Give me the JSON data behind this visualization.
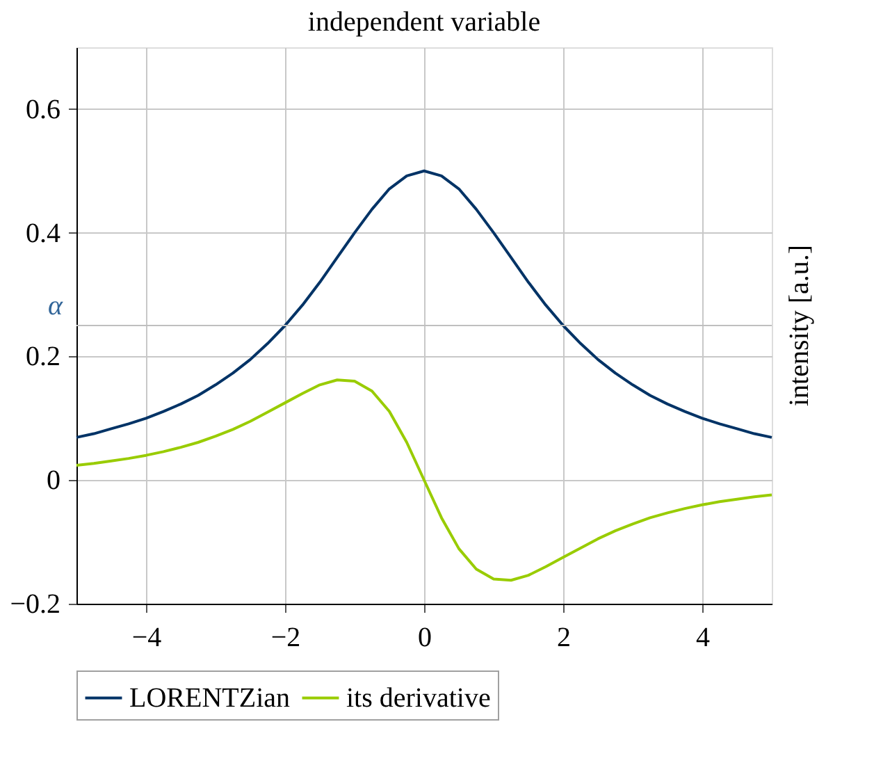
{
  "chart_data": {
    "type": "line",
    "xlabel": "independent variable",
    "ylabel": "intensity [a.u.]",
    "x": [
      -5,
      -4.75,
      -4.5,
      -4.25,
      -4,
      -3.75,
      -3.5,
      -3.25,
      -3,
      -2.75,
      -2.5,
      -2.25,
      -2,
      -1.75,
      -1.5,
      -1.25,
      -1,
      -0.75,
      -0.5,
      -0.25,
      0,
      0.25,
      0.5,
      0.75,
      1,
      1.25,
      1.5,
      1.75,
      2,
      2.25,
      2.5,
      2.75,
      3,
      3.25,
      3.5,
      3.75,
      4,
      4.25,
      4.5,
      4.75,
      5
    ],
    "series": [
      {
        "name": "LORENTZian",
        "color": "#003366",
        "values": [
          0.069,
          0.075,
          0.083,
          0.091,
          0.1,
          0.111,
          0.123,
          0.137,
          0.154,
          0.173,
          0.195,
          0.221,
          0.25,
          0.283,
          0.32,
          0.36,
          0.4,
          0.438,
          0.471,
          0.492,
          0.5,
          0.492,
          0.471,
          0.438,
          0.4,
          0.36,
          0.32,
          0.283,
          0.25,
          0.221,
          0.195,
          0.173,
          0.154,
          0.137,
          0.123,
          0.111,
          0.1,
          0.091,
          0.083,
          0.075,
          0.069
        ]
      },
      {
        "name": "its derivative",
        "color": "#99cc00",
        "values": [
          0.024,
          0.027,
          0.031,
          0.035,
          0.04,
          0.046,
          0.053,
          0.061,
          0.071,
          0.082,
          0.095,
          0.11,
          0.125,
          0.14,
          0.154,
          0.162,
          0.16,
          0.144,
          0.111,
          0.061,
          0,
          -0.061,
          -0.111,
          -0.144,
          -0.16,
          -0.162,
          -0.154,
          -0.14,
          -0.125,
          -0.11,
          -0.095,
          -0.082,
          -0.071,
          -0.061,
          -0.053,
          -0.046,
          -0.04,
          -0.035,
          -0.031,
          -0.027,
          -0.024
        ]
      }
    ],
    "xlim": [
      -5,
      5
    ],
    "xticks": [
      -4,
      -2,
      0,
      2,
      4
    ],
    "ylim": [
      -0.2,
      0.7
    ],
    "yticks": [
      -0.2,
      0,
      0.2,
      0.4,
      0.6
    ],
    "ref_lines": [
      {
        "axis": "y",
        "value": 0.25,
        "label": "α",
        "color": "#bfbfbf"
      }
    ],
    "grid": true,
    "legend": "bottom",
    "marker": "none",
    "line_style": "solid"
  }
}
